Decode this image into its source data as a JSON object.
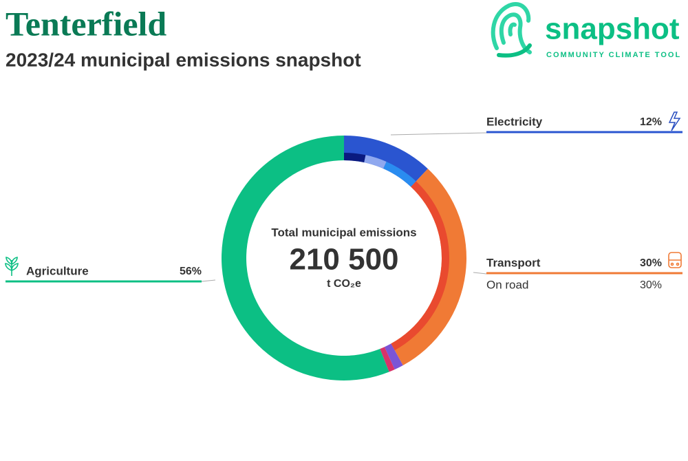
{
  "chart_data": {
    "type": "donut",
    "title": "Tenterfield",
    "subtitle": "2023/24 municipal emissions snapshot",
    "center_label": "Total municipal emissions",
    "total": {
      "value": 210500,
      "label": "210 500"
    },
    "unit": "t CO₂e",
    "categories": [
      "Electricity",
      "Transport",
      null,
      null,
      "Agriculture"
    ],
    "values": [
      12,
      30,
      1.2,
      0.8,
      56
    ],
    "value_labels": [
      "12%",
      "30%",
      null,
      null,
      "56%"
    ],
    "colors": [
      "#2a55d0",
      "#f07a35",
      "#7b55d6",
      "#d8336a",
      "#0cbf84"
    ],
    "breakdown": {
      "categories": [
        null,
        null,
        null,
        "On road"
      ],
      "values": [
        3.3,
        3.3,
        5.4,
        30
      ],
      "value_labels": [
        null,
        null,
        null,
        "30%"
      ],
      "colors": [
        "#0a1a80",
        "#8fa8ef",
        "#2a8cf0",
        "#e94a2f"
      ]
    }
  },
  "logo": {
    "name": "snapshot",
    "tagline": "COMMUNITY CLIMATE TOOL"
  }
}
